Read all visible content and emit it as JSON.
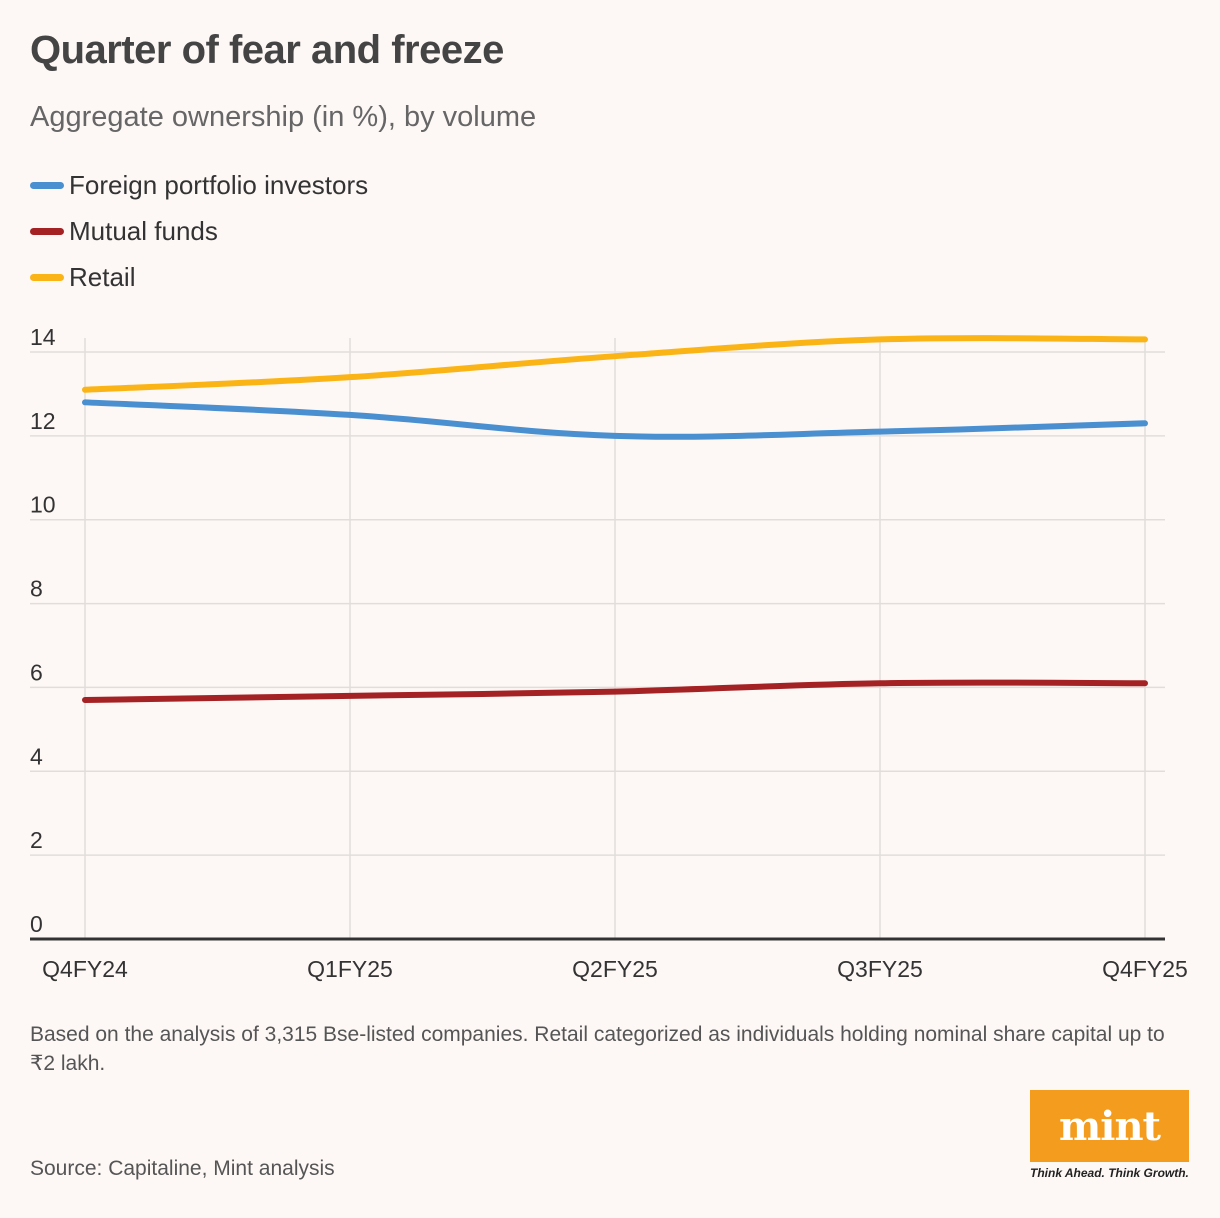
{
  "header": {
    "title": "Quarter of fear and freeze",
    "subtitle": "Aggregate ownership (in %), by volume"
  },
  "chart_data": {
    "type": "line",
    "title": "Quarter of fear and freeze",
    "subtitle": "Aggregate ownership (in %), by volume",
    "xlabel": "",
    "ylabel": "",
    "categories": [
      "Q4FY24",
      "Q1FY25",
      "Q2FY25",
      "Q3FY25",
      "Q4FY25"
    ],
    "ylim": [
      0,
      14
    ],
    "yticks": [
      0,
      2,
      4,
      6,
      8,
      10,
      12,
      14
    ],
    "grid": true,
    "legend_position": "top-left",
    "series": [
      {
        "name": "Foreign portfolio investors",
        "color": "#4a90d0",
        "values": [
          12.8,
          12.5,
          12.0,
          12.1,
          12.3
        ]
      },
      {
        "name": "Mutual funds",
        "color": "#a52224",
        "values": [
          5.7,
          5.8,
          5.9,
          6.1,
          6.1
        ]
      },
      {
        "name": "Retail",
        "color": "#fbb416",
        "values": [
          13.1,
          13.4,
          13.9,
          14.3,
          14.3
        ]
      }
    ]
  },
  "footer": {
    "note": "Based on the analysis of 3,315 Bse-listed companies. Retail categorized as individuals holding nominal share capital up to ₹2 lakh.",
    "source": "Source: Capitaline, Mint analysis"
  },
  "logo": {
    "text": "mint",
    "tagline": "Think Ahead. Think Growth.",
    "color": "#f39c1e"
  }
}
